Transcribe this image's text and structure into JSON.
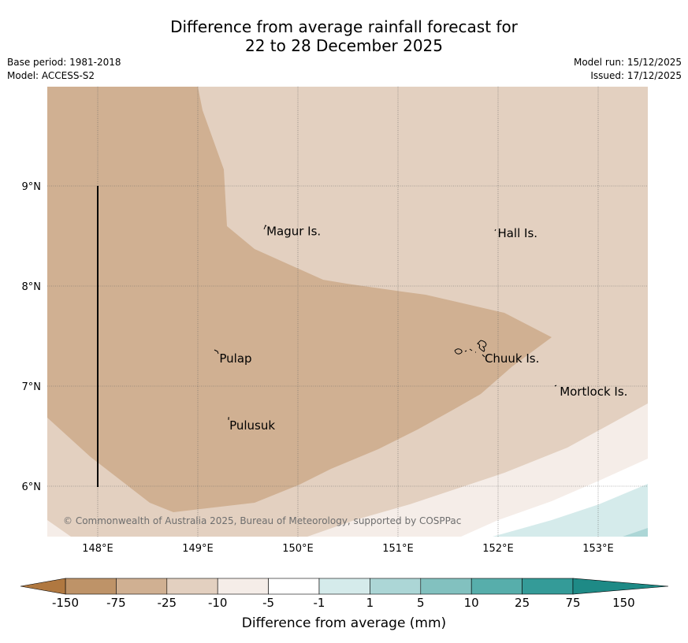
{
  "title": {
    "line1": "Difference from average rainfall forecast for",
    "line2": "22 to 28 December 2025"
  },
  "meta": {
    "base_period": "Base period: 1981-2018",
    "model": "Model: ACCESS-S2",
    "model_run": "Model run: 15/12/2025",
    "issued": "Issued: 17/12/2025"
  },
  "map": {
    "lon_ticks": [
      "148°E",
      "149°E",
      "150°E",
      "151°E",
      "152°E",
      "153°E"
    ],
    "lat_ticks": [
      "9°N",
      "8°N",
      "7°N",
      "6°N"
    ],
    "places": [
      {
        "name": "Magur Is.",
        "lon": 149.67,
        "lat": 8.57
      },
      {
        "name": "Hall Is.",
        "lon": 151.98,
        "lat": 8.55
      },
      {
        "name": "Pulap",
        "lon": 149.2,
        "lat": 7.3
      },
      {
        "name": "Chuuk Is.",
        "lon": 151.85,
        "lat": 7.3
      },
      {
        "name": "Mortlock Is.",
        "lon": 152.6,
        "lat": 6.97
      },
      {
        "name": "Pulusuk",
        "lon": 149.3,
        "lat": 6.63
      }
    ],
    "copyright": "© Commonwealth of Australia 2025, Bureau of Meteorology, supported by COSPPac"
  },
  "colorbar": {
    "ticks": [
      "-150",
      "-75",
      "-25",
      "-10",
      "-5",
      "-1",
      "1",
      "5",
      "10",
      "25",
      "75",
      "150"
    ],
    "colors": [
      "#b07840",
      "#be9368",
      "#d0b092",
      "#e3d0c0",
      "#f5ede8",
      "#ffffff",
      "#d5ebeb",
      "#acd6d6",
      "#82c1bf",
      "#57aeab",
      "#349b98",
      "#1e8a86"
    ],
    "label": "Difference from average (mm)"
  },
  "palette": {
    "very_dry": "#d0b092",
    "dry": "#e3d0c0",
    "slight_dry": "#f5ede8",
    "neutral": "#ffffff",
    "slight_wet": "#d5ebeb",
    "wet": "#acd6d6"
  }
}
